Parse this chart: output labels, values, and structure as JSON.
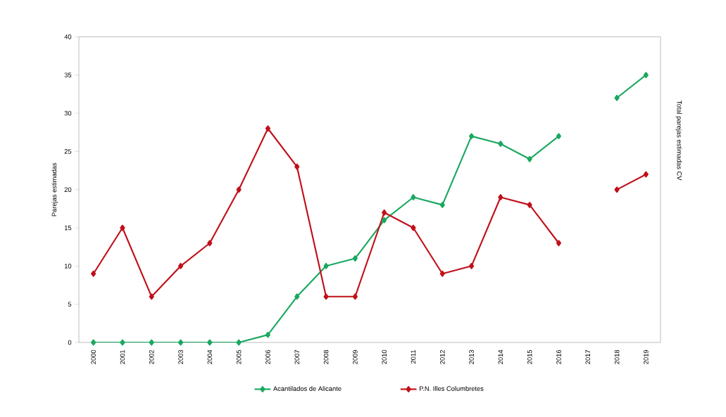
{
  "chart_data": {
    "type": "line",
    "ylabel": "Parejas estimadas",
    "y2label": "Total parejas estimadas CV",
    "categories": [
      "2000",
      "2001",
      "2002",
      "2003",
      "2004",
      "2005",
      "2006",
      "2007",
      "2008",
      "2009",
      "2010",
      "2011",
      "2012",
      "2013",
      "2014",
      "2015",
      "2016",
      "2017",
      "2018",
      "2019"
    ],
    "series": [
      {
        "name": "Acantilados de Alicante",
        "color": "#1aa860",
        "values": [
          0,
          0,
          0,
          0,
          0,
          0,
          1,
          6,
          10,
          11,
          16,
          19,
          18,
          27,
          26,
          24,
          27,
          null,
          32,
          35
        ]
      },
      {
        "name": "P.N. Illes Columbretes",
        "color": "#c0101a",
        "values": [
          9,
          15,
          6,
          10,
          13,
          20,
          28,
          23,
          6,
          6,
          17,
          15,
          9,
          10,
          19,
          18,
          13,
          null,
          20,
          22
        ]
      }
    ],
    "ylim": [
      0,
      40
    ],
    "yticks": [
      0,
      5,
      10,
      15,
      20,
      25,
      30,
      35,
      40
    ],
    "grid": false,
    "legend": "bottom",
    "marker": "diamond",
    "line_style": "solid"
  }
}
